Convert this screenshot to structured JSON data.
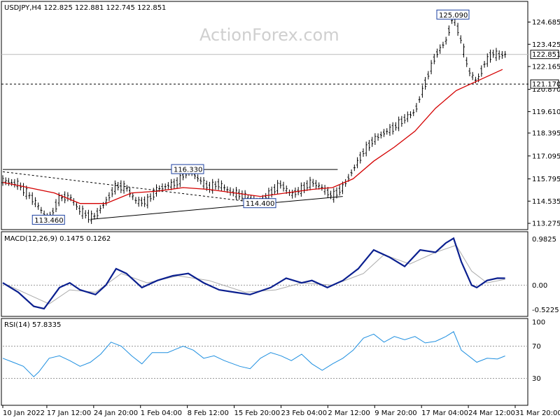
{
  "chart_data": {
    "type": "candlestick",
    "symbol": "USDJPY",
    "timeframe": "H4",
    "header": "USDJPY,H4  122.825 122.881 122.745 122.851",
    "watermark": "ActionForex.com",
    "price_axis": {
      "ticks": [
        "124.685",
        "123.425",
        "122.165",
        "120.870",
        "119.610",
        "118.395",
        "117.095",
        "115.795",
        "114.535",
        "113.275"
      ],
      "range": [
        113.0,
        125.3
      ]
    },
    "x_axis": {
      "ticks": [
        "10 Jan 2022",
        "17 Jan 12:00",
        "24 Jan 20:00",
        "1 Feb 04:00",
        "8 Feb 12:00",
        "15 Feb 20:00",
        "23 Feb 04:00",
        "2 Mar 12:00",
        "9 Mar 20:00",
        "17 Mar 04:00",
        "24 Mar 12:00",
        "31 Mar 20:00"
      ],
      "range": [
        0,
        100
      ]
    },
    "price_path": [
      [
        0,
        115.7
      ],
      [
        3,
        115.5
      ],
      [
        6,
        114.6
      ],
      [
        8,
        113.8
      ],
      [
        9,
        113.46
      ],
      [
        11,
        114.7
      ],
      [
        13,
        114.8
      ],
      [
        15,
        114.0
      ],
      [
        17,
        113.6
      ],
      [
        18,
        113.7
      ],
      [
        20,
        114.5
      ],
      [
        22,
        115.4
      ],
      [
        24,
        115.3
      ],
      [
        26,
        114.5
      ],
      [
        28,
        114.5
      ],
      [
        30,
        115.2
      ],
      [
        32,
        115.4
      ],
      [
        34,
        115.6
      ],
      [
        36,
        116.33
      ],
      [
        38,
        115.8
      ],
      [
        40,
        115.3
      ],
      [
        42,
        115.5
      ],
      [
        44,
        115.1
      ],
      [
        46,
        114.9
      ],
      [
        48,
        114.6
      ],
      [
        50,
        114.5
      ],
      [
        52,
        115.0
      ],
      [
        54,
        115.5
      ],
      [
        56,
        114.9
      ],
      [
        58,
        115.2
      ],
      [
        60,
        115.6
      ],
      [
        62,
        115.3
      ],
      [
        64,
        114.8
      ],
      [
        66,
        115.3
      ],
      [
        68,
        116.3
      ],
      [
        70,
        117.3
      ],
      [
        72,
        118.0
      ],
      [
        74,
        118.4
      ],
      [
        76,
        118.7
      ],
      [
        78,
        119.2
      ],
      [
        80,
        119.6
      ],
      [
        82,
        121.2
      ],
      [
        84,
        122.8
      ],
      [
        86,
        123.6
      ],
      [
        87.5,
        125.09
      ],
      [
        89,
        123.6
      ],
      [
        90.5,
        121.9
      ],
      [
        92,
        121.3
      ],
      [
        93.5,
        122.3
      ],
      [
        95,
        122.9
      ],
      [
        96.5,
        122.8
      ],
      [
        97.5,
        122.851
      ]
    ],
    "ma_path": [
      [
        0,
        115.6
      ],
      [
        10,
        115.0
      ],
      [
        15,
        114.4
      ],
      [
        20,
        114.4
      ],
      [
        25,
        115.0
      ],
      [
        30,
        115.1
      ],
      [
        35,
        115.3
      ],
      [
        40,
        115.2
      ],
      [
        45,
        115.0
      ],
      [
        50,
        114.8
      ],
      [
        55,
        115.0
      ],
      [
        60,
        115.2
      ],
      [
        64,
        115.3
      ],
      [
        68,
        115.8
      ],
      [
        72,
        116.8
      ],
      [
        76,
        117.6
      ],
      [
        80,
        118.5
      ],
      [
        84,
        119.8
      ],
      [
        88,
        120.8
      ],
      [
        91,
        121.2
      ],
      [
        94,
        121.6
      ],
      [
        97,
        122.0
      ]
    ],
    "levels": [
      {
        "name": "last",
        "value": 122.851,
        "label": "122.851",
        "style": "solid"
      },
      {
        "name": "support",
        "value": 121.17,
        "label": "121.170",
        "style": "dashed"
      }
    ],
    "callouts": [
      {
        "label": "125.090",
        "x": 87.5,
        "y": 125.09
      },
      {
        "label": "116.330",
        "x": 36,
        "y": 116.33
      },
      {
        "label": "114.400",
        "x": 50,
        "y": 114.4
      },
      {
        "label": "113.460",
        "x": 9,
        "y": 113.46
      }
    ],
    "trendlines": [
      {
        "name": "resistance",
        "points": [
          [
            0,
            116.33
          ],
          [
            65,
            116.33
          ]
        ],
        "style": "solid"
      },
      {
        "name": "support",
        "points": [
          [
            17,
            113.5
          ],
          [
            66,
            114.8
          ]
        ],
        "style": "solid"
      },
      {
        "name": "falling",
        "points": [
          [
            0,
            116.2
          ],
          [
            48,
            114.5
          ]
        ],
        "style": "dashed"
      }
    ],
    "macd": {
      "label": "MACD(12,26,9) 0.1475 0.1262",
      "ticks": [
        "0.9825",
        "0.00",
        "-0.5225"
      ],
      "range": [
        -0.62,
        1.05
      ],
      "path": [
        [
          0,
          0.05
        ],
        [
          3,
          -0.15
        ],
        [
          6,
          -0.45
        ],
        [
          8,
          -0.5
        ],
        [
          11,
          -0.05
        ],
        [
          13,
          0.05
        ],
        [
          15,
          -0.1
        ],
        [
          18,
          -0.2
        ],
        [
          20,
          0.0
        ],
        [
          22,
          0.35
        ],
        [
          24,
          0.25
        ],
        [
          27,
          -0.05
        ],
        [
          30,
          0.1
        ],
        [
          33,
          0.2
        ],
        [
          36,
          0.25
        ],
        [
          39,
          0.05
        ],
        [
          42,
          -0.1
        ],
        [
          45,
          -0.15
        ],
        [
          48,
          -0.2
        ],
        [
          52,
          -0.05
        ],
        [
          55,
          0.15
        ],
        [
          58,
          0.05
        ],
        [
          60,
          0.1
        ],
        [
          63,
          -0.05
        ],
        [
          66,
          0.1
        ],
        [
          69,
          0.35
        ],
        [
          72,
          0.75
        ],
        [
          75,
          0.6
        ],
        [
          78,
          0.4
        ],
        [
          81,
          0.75
        ],
        [
          84,
          0.7
        ],
        [
          86,
          0.9
        ],
        [
          87.5,
          1.0
        ],
        [
          89,
          0.5
        ],
        [
          91,
          0.0
        ],
        [
          92,
          -0.05
        ],
        [
          94,
          0.1
        ],
        [
          96,
          0.15
        ],
        [
          97.5,
          0.1475
        ]
      ],
      "signal": [
        [
          0,
          0.05
        ],
        [
          5,
          -0.2
        ],
        [
          9,
          -0.4
        ],
        [
          13,
          -0.1
        ],
        [
          18,
          -0.15
        ],
        [
          23,
          0.25
        ],
        [
          28,
          0.05
        ],
        [
          34,
          0.2
        ],
        [
          40,
          0.1
        ],
        [
          47,
          -0.15
        ],
        [
          53,
          -0.1
        ],
        [
          58,
          0.05
        ],
        [
          64,
          0.0
        ],
        [
          70,
          0.25
        ],
        [
          74,
          0.65
        ],
        [
          79,
          0.45
        ],
        [
          84,
          0.7
        ],
        [
          88,
          0.85
        ],
        [
          91,
          0.3
        ],
        [
          94,
          0.05
        ],
        [
          97.5,
          0.1262
        ]
      ]
    },
    "rsi": {
      "label": "RSI(14) 57.8335",
      "ticks": [
        "100",
        "70",
        "30"
      ],
      "range": [
        0,
        100
      ],
      "levels": [
        70,
        30
      ],
      "path": [
        [
          0,
          55
        ],
        [
          2,
          50
        ],
        [
          4,
          45
        ],
        [
          6,
          32
        ],
        [
          7,
          38
        ],
        [
          9,
          55
        ],
        [
          11,
          58
        ],
        [
          13,
          52
        ],
        [
          15,
          45
        ],
        [
          17,
          50
        ],
        [
          19,
          60
        ],
        [
          21,
          75
        ],
        [
          23,
          70
        ],
        [
          25,
          58
        ],
        [
          27,
          48
        ],
        [
          29,
          62
        ],
        [
          32,
          62
        ],
        [
          35,
          70
        ],
        [
          37,
          65
        ],
        [
          39,
          55
        ],
        [
          41,
          58
        ],
        [
          43,
          52
        ],
        [
          46,
          45
        ],
        [
          48,
          42
        ],
        [
          50,
          55
        ],
        [
          52,
          62
        ],
        [
          54,
          58
        ],
        [
          56,
          52
        ],
        [
          58,
          60
        ],
        [
          60,
          48
        ],
        [
          62,
          40
        ],
        [
          64,
          48
        ],
        [
          66,
          55
        ],
        [
          68,
          65
        ],
        [
          70,
          80
        ],
        [
          72,
          85
        ],
        [
          74,
          75
        ],
        [
          76,
          82
        ],
        [
          78,
          78
        ],
        [
          80,
          82
        ],
        [
          82,
          74
        ],
        [
          84,
          76
        ],
        [
          86,
          82
        ],
        [
          87.5,
          88
        ],
        [
          89,
          65
        ],
        [
          91,
          55
        ],
        [
          92,
          50
        ],
        [
          94,
          55
        ],
        [
          96,
          54
        ],
        [
          97.5,
          57.8335
        ]
      ]
    }
  }
}
